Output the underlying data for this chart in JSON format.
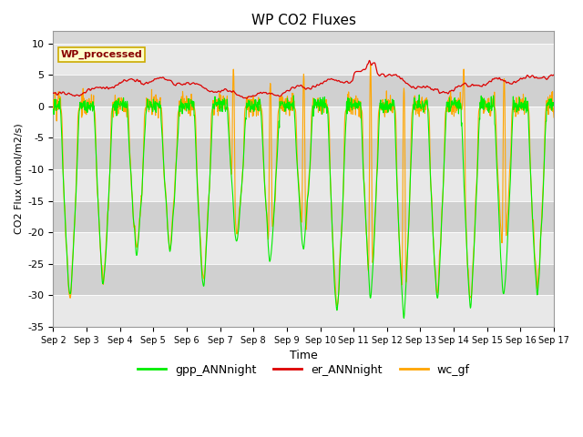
{
  "title": "WP CO2 Fluxes",
  "xlabel": "Time",
  "ylabel": "CO2 Flux (umol/m2/s)",
  "ylim": [
    -35,
    12
  ],
  "yticks": [
    -35,
    -30,
    -25,
    -20,
    -15,
    -10,
    -5,
    0,
    5,
    10
  ],
  "annotation": "WP_processed",
  "legend": [
    "gpp_ANNnight",
    "er_ANNnight",
    "wc_gf"
  ],
  "colors": {
    "gpp": "#00ee00",
    "er": "#dd0000",
    "wc": "#ffa500"
  },
  "plot_bg": "#d8d8d8",
  "band_light": "#e8e8e8",
  "band_dark": "#d0d0d0",
  "n_days": 15,
  "points_per_day": 96,
  "x_tick_labels": [
    "Sep 2",
    "Sep 3",
    "Sep 4",
    "Sep 5",
    "Sep 6",
    "Sep 7",
    "Sep 8",
    "Sep 9",
    "Sep 10",
    "Sep 11",
    "Sep 12",
    "Sep 13",
    "Sep 14",
    "Sep 15",
    "Sep 16",
    "Sep 17"
  ],
  "day_depths_gpp": [
    -31,
    -29,
    -24,
    -23,
    -29,
    -22,
    -25,
    -23,
    -33,
    -31,
    -34,
    -31,
    -32,
    -31,
    -30
  ],
  "day_depths_wc": [
    -31,
    -28,
    -23,
    -22,
    -28,
    -21,
    -24,
    -22,
    -32,
    -30,
    -33,
    -30,
    -31,
    -25,
    -29
  ]
}
